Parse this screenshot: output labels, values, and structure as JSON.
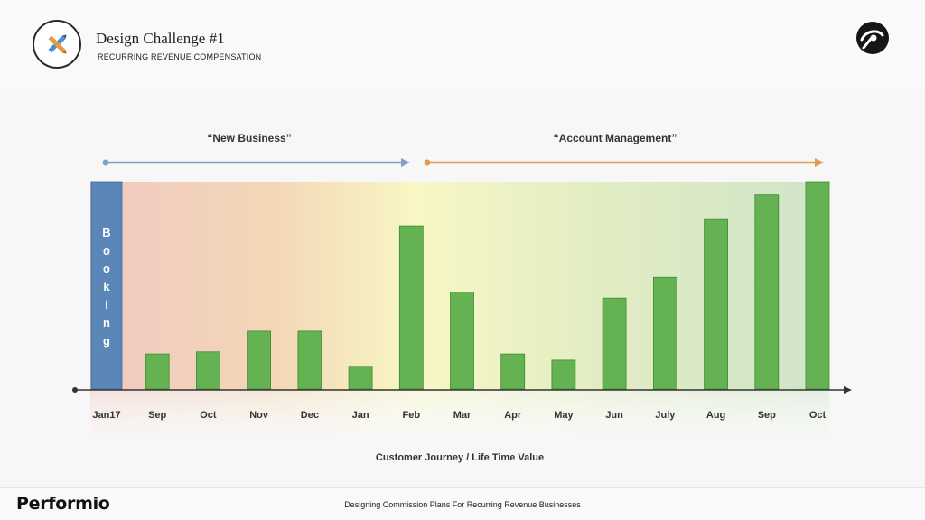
{
  "header": {
    "title": "Design Challenge #1",
    "subtitle": "RECURRING REVENUE COMPENSATION",
    "logo_icon": "crossed-pencils-icon",
    "brand_icon": "performio-swirl-icon"
  },
  "footer": {
    "brand": "Performio",
    "caption": "Designing Commission Plans For Recurring Revenue Businesses"
  },
  "colors": {
    "bar": "#65b253",
    "bar_stroke": "#3f8a32",
    "booking_bar": "#5b87b8",
    "new_business_arrow": "#7ea3c6",
    "account_management_arrow": "#e39b52"
  },
  "chart_data": {
    "type": "bar",
    "title": "",
    "xlabel": "Customer Journey / Life Time Value",
    "ylabel": "",
    "ylim": [
      0,
      100
    ],
    "categories": [
      "Jan17",
      "Sep",
      "Oct",
      "Nov",
      "Dec",
      "Jan",
      "Feb",
      "Mar",
      "Apr",
      "May",
      "Jun",
      "July",
      "Aug",
      "Sep",
      "Oct"
    ],
    "values": [
      100,
      17,
      18,
      28,
      28,
      11,
      79,
      47,
      17,
      14,
      44,
      54,
      82,
      94,
      100
    ],
    "booking_label": "Booking",
    "phases": [
      {
        "label": "“New Business”",
        "from": "Jan17",
        "to": "Feb"
      },
      {
        "label": "“Account Management”",
        "from": "Feb",
        "to": "Oct"
      }
    ],
    "background_gradient": [
      "#efc9c2",
      "#f6e2b8",
      "#f8f7c4",
      "#e1ecc3",
      "#cfe4c9"
    ],
    "grid": false
  }
}
